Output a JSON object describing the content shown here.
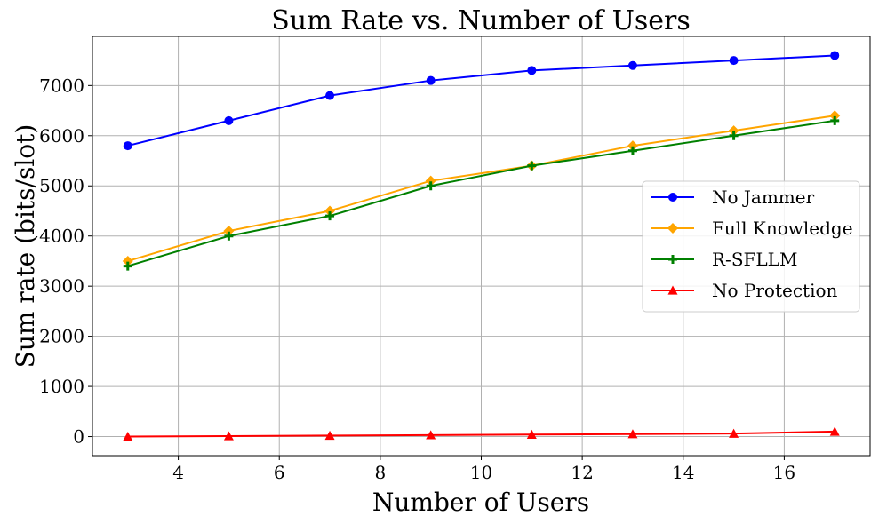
{
  "chart_data": {
    "type": "line",
    "title": "Sum Rate vs. Number of Users",
    "xlabel": "Number of Users",
    "ylabel": "Sum rate (bits/slot)",
    "x": [
      3,
      5,
      7,
      9,
      11,
      13,
      15,
      17
    ],
    "xlim": [
      2.3,
      17.7
    ],
    "ylim": [
      -380,
      7980
    ],
    "xticks": [
      4,
      6,
      8,
      10,
      12,
      14,
      16
    ],
    "xtick_labels": [
      "4",
      "6",
      "8",
      "10",
      "12",
      "14",
      "16"
    ],
    "yticks": [
      0,
      1000,
      2000,
      3000,
      4000,
      5000,
      6000,
      7000
    ],
    "ytick_labels": [
      "0",
      "1000",
      "2000",
      "3000",
      "4000",
      "5000",
      "6000",
      "7000"
    ],
    "grid": true,
    "legend_position": "center-right",
    "series": [
      {
        "name": "No Jammer",
        "color": "#0000ff",
        "marker": "circle",
        "values": [
          5800,
          6300,
          6800,
          7100,
          7300,
          7400,
          7500,
          7600
        ]
      },
      {
        "name": "Full Knowledge",
        "color": "#ffa500",
        "marker": "diamond",
        "values": [
          3500,
          4100,
          4500,
          5100,
          5400,
          5800,
          6100,
          6400
        ]
      },
      {
        "name": "R-SFLLM",
        "color": "#008000",
        "marker": "plus",
        "values": [
          3400,
          4000,
          4400,
          5000,
          5400,
          5700,
          6000,
          6300
        ]
      },
      {
        "name": "No Protection",
        "color": "#ff0000",
        "marker": "triangle",
        "values": [
          0,
          10,
          20,
          30,
          40,
          50,
          60,
          100
        ]
      }
    ]
  }
}
